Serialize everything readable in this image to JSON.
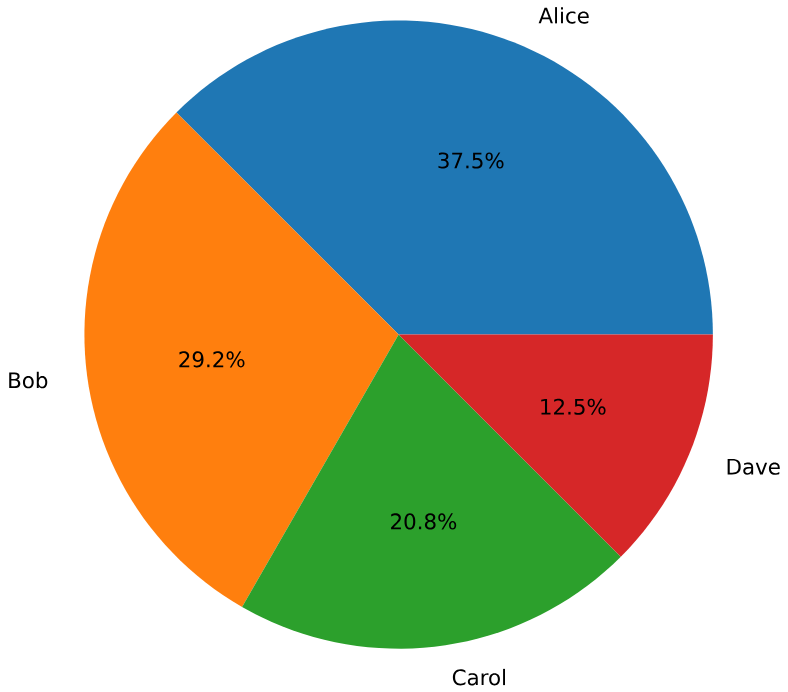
{
  "chart_data": {
    "type": "pie",
    "categories": [
      "Alice",
      "Bob",
      "Carol",
      "Dave"
    ],
    "values": [
      37.5,
      29.2,
      20.8,
      12.5
    ],
    "colors": [
      "#1f77b4",
      "#ff7f0e",
      "#2ca02c",
      "#d62728"
    ],
    "value_labels": [
      "37.5%",
      "29.2%",
      "20.8%",
      "12.5%"
    ]
  }
}
